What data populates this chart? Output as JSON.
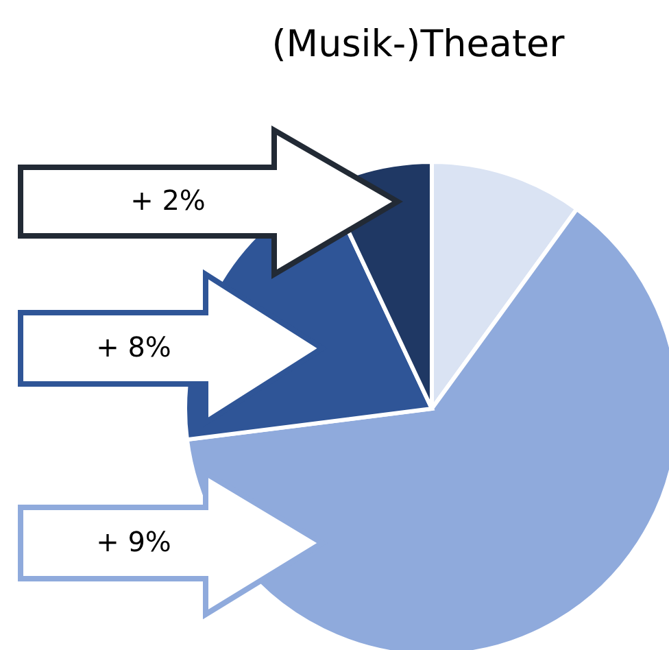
{
  "chart_data": {
    "type": "pie",
    "title": "(Musik-)Theater",
    "categories": [
      null,
      null,
      null,
      null
    ],
    "values": [
      10,
      63,
      20,
      7
    ],
    "colors": [
      "#dae3f3",
      "#8faadc",
      "#2f5597",
      "#1f3864"
    ],
    "annotations": [
      "+ 2%",
      "+ 8%",
      "+ 9%"
    ]
  }
}
